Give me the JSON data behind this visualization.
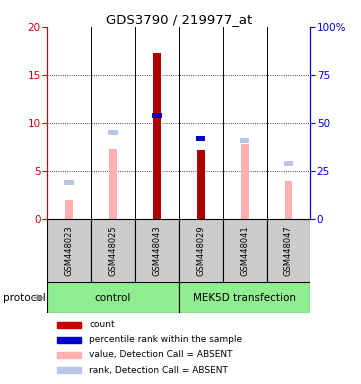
{
  "title": "GDS3790 / 219977_at",
  "samples": [
    "GSM448023",
    "GSM448025",
    "GSM448043",
    "GSM448029",
    "GSM448041",
    "GSM448047"
  ],
  "bar_values": [
    2.0,
    7.3,
    17.3,
    7.2,
    7.8,
    4.0
  ],
  "bar_colors": [
    "#ffb0b0",
    "#ffb0b0",
    "#aa0000",
    "#aa0000",
    "#ffb0b0",
    "#ffb0b0"
  ],
  "rank_values": [
    3.8,
    9.0,
    10.8,
    8.4,
    8.2,
    5.8
  ],
  "rank_colors": [
    "#b8c4e8",
    "#b8c4e8",
    "#0000cc",
    "#0000cc",
    "#b8c4e8",
    "#b8c4e8"
  ],
  "ylim_left": [
    0,
    20
  ],
  "ylim_right": [
    0,
    100
  ],
  "yticks_left": [
    0,
    5,
    10,
    15,
    20
  ],
  "yticks_right": [
    0,
    25,
    50,
    75,
    100
  ],
  "group_names": [
    "control",
    "MEK5D transfection"
  ],
  "group_color": "#90ee90",
  "legend_items": [
    {
      "label": "count",
      "color": "#cc0000"
    },
    {
      "label": "percentile rank within the sample",
      "color": "#0000cc"
    },
    {
      "label": "value, Detection Call = ABSENT",
      "color": "#ffb0b0"
    },
    {
      "label": "rank, Detection Call = ABSENT",
      "color": "#b8c4e8"
    }
  ],
  "axis_left_color": "#cc0000",
  "axis_right_color": "#0000cc",
  "protocol_label": "protocol"
}
